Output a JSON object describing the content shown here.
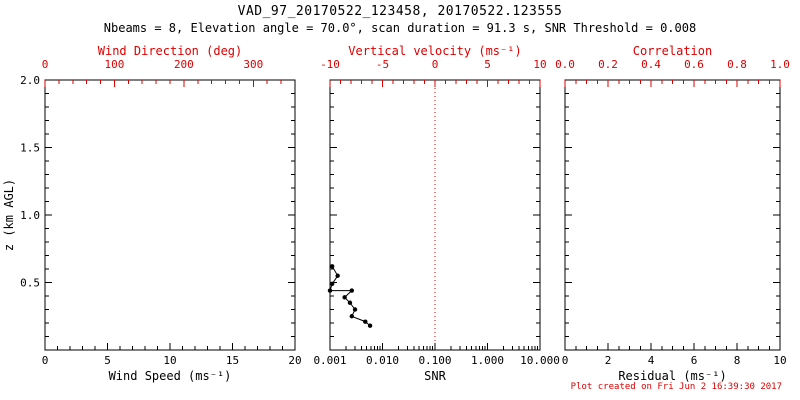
{
  "title": "VAD_97_20170522_123458, 20170522.123555",
  "subtitle": "Nbeams = 8, Elevation angle = 70.0°, scan duration = 91.3 s, SNR Threshold = 0.008",
  "footer": "Plot created on Fri Jun 2 16:39:30 2017",
  "colors": {
    "axis": "#000000",
    "accent_red": "#dd0000",
    "background": "#ffffff"
  },
  "chart_data": [
    {
      "type": "line",
      "panel": "wind-speed",
      "xlabel": "Wind Speed (ms⁻¹)",
      "xlim": [
        0,
        20
      ],
      "xticks": [
        0,
        5,
        10,
        15,
        20
      ],
      "xtick_labels": [
        "0",
        "5",
        "10",
        "15",
        "20"
      ],
      "x_minor_divs": 5,
      "ylabel": "z (km AGL)",
      "ylim": [
        0,
        2
      ],
      "yticks": [
        0.5,
        1.0,
        1.5,
        2.0
      ],
      "ytick_labels": [
        "0.5",
        "1.0",
        "1.5",
        "2.0"
      ],
      "y_minor_divs": 5,
      "top_axis": {
        "label": "Wind Direction (deg)",
        "lim": [
          0,
          360
        ],
        "ticks": [
          0,
          100,
          200,
          300
        ],
        "tick_labels": [
          "0",
          "100",
          "200",
          "300"
        ],
        "minor_divs": 5
      },
      "series": []
    },
    {
      "type": "line",
      "panel": "snr",
      "xlabel": "SNR",
      "xscale": "log",
      "xlim": [
        0.001,
        10
      ],
      "xticks": [
        0.001,
        0.01,
        0.1,
        1,
        10
      ],
      "xtick_labels": [
        "0.001",
        "0.010",
        "0.100",
        "1.000",
        "10.000"
      ],
      "ylim": [
        0,
        2
      ],
      "yticks": [
        0.5,
        1.0,
        1.5,
        2.0
      ],
      "y_minor_divs": 5,
      "top_axis": {
        "label": "Vertical velocity (ms⁻¹)",
        "lim": [
          -10,
          10
        ],
        "ticks": [
          -10,
          -5,
          0,
          5,
          10
        ],
        "tick_labels": [
          "-10",
          "-5",
          "0",
          "5",
          "10"
        ],
        "minor_divs": 5
      },
      "reference_line": {
        "x": 0.1,
        "color": "#dd0000",
        "style": "dotted"
      },
      "series": [
        {
          "name": "snr-profile",
          "color": "#000000",
          "marker": "circle",
          "points": [
            [
              0.0011,
              0.62
            ],
            [
              0.0014,
              0.55
            ],
            [
              0.0011,
              0.49
            ],
            [
              0.001,
              0.44
            ],
            [
              0.0026,
              0.44
            ],
            [
              0.0019,
              0.39
            ],
            [
              0.0024,
              0.35
            ],
            [
              0.003,
              0.3
            ],
            [
              0.0026,
              0.25
            ],
            [
              0.0047,
              0.21
            ],
            [
              0.0058,
              0.18
            ]
          ]
        }
      ]
    },
    {
      "type": "line",
      "panel": "residual",
      "xlabel": "Residual (ms⁻¹)",
      "xlim": [
        0,
        10
      ],
      "xticks": [
        0,
        2,
        4,
        6,
        8,
        10
      ],
      "xtick_labels": [
        "0",
        "2",
        "4",
        "6",
        "8",
        "10"
      ],
      "x_minor_divs": 4,
      "ylim": [
        0,
        2
      ],
      "yticks": [
        0.5,
        1.0,
        1.5,
        2.0
      ],
      "y_minor_divs": 5,
      "top_axis": {
        "label": "Correlation",
        "lim": [
          0,
          1
        ],
        "ticks": [
          0.0,
          0.2,
          0.4,
          0.6,
          0.8,
          1.0
        ],
        "tick_labels": [
          "0.0",
          "0.2",
          "0.4",
          "0.6",
          "0.8",
          "1.0"
        ],
        "minor_divs": 4
      },
      "series": []
    }
  ]
}
